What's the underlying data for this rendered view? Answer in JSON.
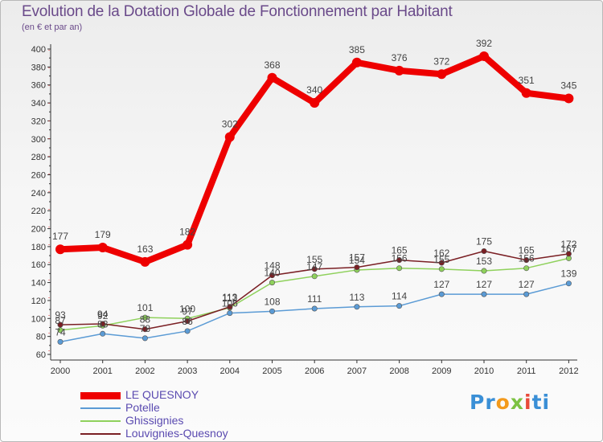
{
  "title": "Evolution de la Dotation Globale de Fonctionnement par Habitant",
  "subtitle": "(en € et par an)",
  "logo": {
    "parts": [
      "Pr",
      "o",
      "x",
      "i",
      "ti"
    ],
    "colors": [
      "#3a8fd6",
      "#f39a1c",
      "#7cc242",
      "#e84a3a",
      "#3a8fd6"
    ]
  },
  "chart_data": {
    "type": "line",
    "title": "Evolution de la Dotation Globale de Fonctionnement par Habitant",
    "subtitle": "(en € et par an)",
    "x": [
      "2000",
      "2001",
      "2002",
      "2003",
      "2004",
      "2005",
      "2006",
      "2007",
      "2008",
      "2009",
      "2010",
      "2011",
      "2012"
    ],
    "ylim": [
      60,
      400
    ],
    "yticks": [
      "60",
      "80",
      "100",
      "120",
      "140",
      "160",
      "180",
      "200",
      "220",
      "240",
      "260",
      "280",
      "300",
      "320",
      "340",
      "360",
      "380",
      "400"
    ],
    "grid": false,
    "legend_position": "bottom-left",
    "series": [
      {
        "name": "LE QUESNOY",
        "color": "#ee0000",
        "values": [
          177,
          179,
          163,
          182,
          302,
          368,
          340,
          385,
          376,
          372,
          392,
          351,
          345
        ],
        "labels": [
          "177",
          "179",
          "163",
          "182",
          "302",
          "368",
          "340",
          "385",
          "376",
          "372",
          "392",
          "351",
          "345"
        ]
      },
      {
        "name": "Potelle",
        "color": "#5b9bd5",
        "values": [
          74,
          83,
          78,
          86,
          106,
          108,
          111,
          113,
          114,
          127,
          127,
          127,
          139
        ],
        "labels": [
          "74",
          "83",
          "78",
          "86",
          "106",
          "108",
          "111",
          "113",
          "114",
          "127",
          "127",
          "127",
          "139"
        ]
      },
      {
        "name": "Ghissignies",
        "color": "#8fd15c",
        "values": [
          87,
          92,
          101,
          100,
          112,
          140,
          147,
          154,
          156,
          155,
          153,
          156,
          167
        ],
        "labels": [
          "87",
          "92",
          "101",
          "100",
          "112",
          "140",
          "147",
          "154",
          "156",
          "155",
          "153",
          "156",
          "167"
        ]
      },
      {
        "name": "Louvignies-Quesnoy",
        "color": "#7a1f24",
        "values": [
          93,
          94,
          88,
          97,
          113,
          148,
          155,
          157,
          165,
          162,
          175,
          165,
          172
        ],
        "labels": [
          "93",
          "94",
          "88",
          "97",
          "113",
          "148",
          "155",
          "157",
          "165",
          "162",
          "175",
          "165",
          "172"
        ]
      }
    ]
  }
}
